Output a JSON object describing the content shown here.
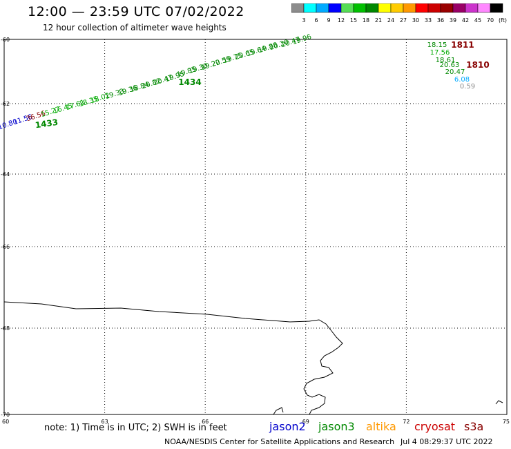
{
  "title": "12:00 — 23:59 UTC 07/02/2022",
  "subtitle": "12 hour collection of altimeter wave heights",
  "colorbar": {
    "colors": [
      "#8c8c8c",
      "#00ffff",
      "#00aaff",
      "#0000ff",
      "#55dd55",
      "#00c000",
      "#008800",
      "#ffff00",
      "#ffcc00",
      "#ff9900",
      "#ff0000",
      "#cc0000",
      "#990000",
      "#990066",
      "#cc33cc",
      "#ff88ff",
      "#000000"
    ],
    "labels": [
      "3",
      "6",
      "9",
      "12",
      "15",
      "18",
      "21",
      "24",
      "27",
      "30",
      "33",
      "36",
      "39",
      "42",
      "45",
      "70"
    ],
    "unit": "(ft)"
  },
  "axes": {
    "lat_labels": [
      {
        "lat": -60,
        "text": "-60"
      },
      {
        "lat": -62,
        "text": "-62"
      },
      {
        "lat": -64,
        "text": "-64"
      },
      {
        "lat": -66,
        "text": "-66"
      },
      {
        "lat": -68,
        "text": "-68"
      },
      {
        "lat": -70,
        "text": "-70"
      }
    ],
    "lon_labels": [
      {
        "lon": 60,
        "text": "60"
      },
      {
        "lon": 63,
        "text": "63"
      },
      {
        "lon": 66,
        "text": "66"
      },
      {
        "lon": 69,
        "text": "69"
      },
      {
        "lon": 72,
        "text": "72"
      },
      {
        "lon": 75,
        "text": "75"
      }
    ]
  },
  "track_west": [
    {
      "text": "10.80",
      "color": "#0000cc"
    },
    {
      "text": "11.56",
      "color": "#0000cc"
    },
    {
      "text": "36.56",
      "color": "#880000"
    },
    {
      "text": "15.27",
      "color": "#00aa00"
    },
    {
      "text": "16.45",
      "color": "#00aa00"
    },
    {
      "text": "17.61",
      "color": "#00aa00"
    },
    {
      "text": "18.35",
      "color": "#00aa00"
    },
    {
      "text": "18.02",
      "color": "#00aa00"
    },
    {
      "text": "19.33",
      "color": "#008800"
    },
    {
      "text": "19.36",
      "color": "#008800"
    },
    {
      "text": "18.84",
      "color": "#008800"
    },
    {
      "text": "20.82",
      "color": "#008800"
    },
    {
      "text": "20.47",
      "color": "#008800"
    },
    {
      "text": "19.95",
      "color": "#008800"
    },
    {
      "text": "19.85",
      "color": "#008800"
    },
    {
      "text": "19.30",
      "color": "#008800"
    },
    {
      "text": "19.22",
      "color": "#008800"
    },
    {
      "text": "20.59",
      "color": "#008800"
    },
    {
      "text": "19.75",
      "color": "#008800"
    },
    {
      "text": "20.65",
      "color": "#008800"
    },
    {
      "text": "19.64",
      "color": "#008800"
    },
    {
      "text": "19.88",
      "color": "#008800"
    },
    {
      "text": "20.20",
      "color": "#008800"
    },
    {
      "text": "20.47",
      "color": "#008800"
    },
    {
      "text": "19.96",
      "color": "#008800"
    }
  ],
  "track_east": [
    {
      "text": "18.15",
      "color": "#008800"
    },
    {
      "text": "17.56",
      "color": "#00aa00"
    },
    {
      "text": "18.61",
      "color": "#008800"
    },
    {
      "text": "20.63",
      "color": "#008800"
    },
    {
      "text": "20.47",
      "color": "#008800"
    },
    {
      "text": "6.08",
      "color": "#00aaff"
    },
    {
      "text": "0.59",
      "color": "#8c8c8c"
    }
  ],
  "time_labels": [
    {
      "text": "1433",
      "color": "#008800"
    },
    {
      "text": "1434",
      "color": "#008800"
    },
    {
      "text": "1811",
      "color": "#880000"
    },
    {
      "text": "1810",
      "color": "#880000"
    }
  ],
  "note": "note: 1) Time is in UTC; 2) SWH is in feet",
  "satellites": [
    {
      "name": "jason2",
      "color": "#0000cc"
    },
    {
      "name": "jason3",
      "color": "#008800"
    },
    {
      "name": "altika",
      "color": "#ff9900"
    },
    {
      "name": "cryosat",
      "color": "#cc0000"
    },
    {
      "name": "s3a",
      "color": "#880000"
    }
  ],
  "credit": "NOAA/NESDIS Center for Satellite Applications and Research",
  "credit_time": "Jul  4 08:29:37 UTC 2022"
}
